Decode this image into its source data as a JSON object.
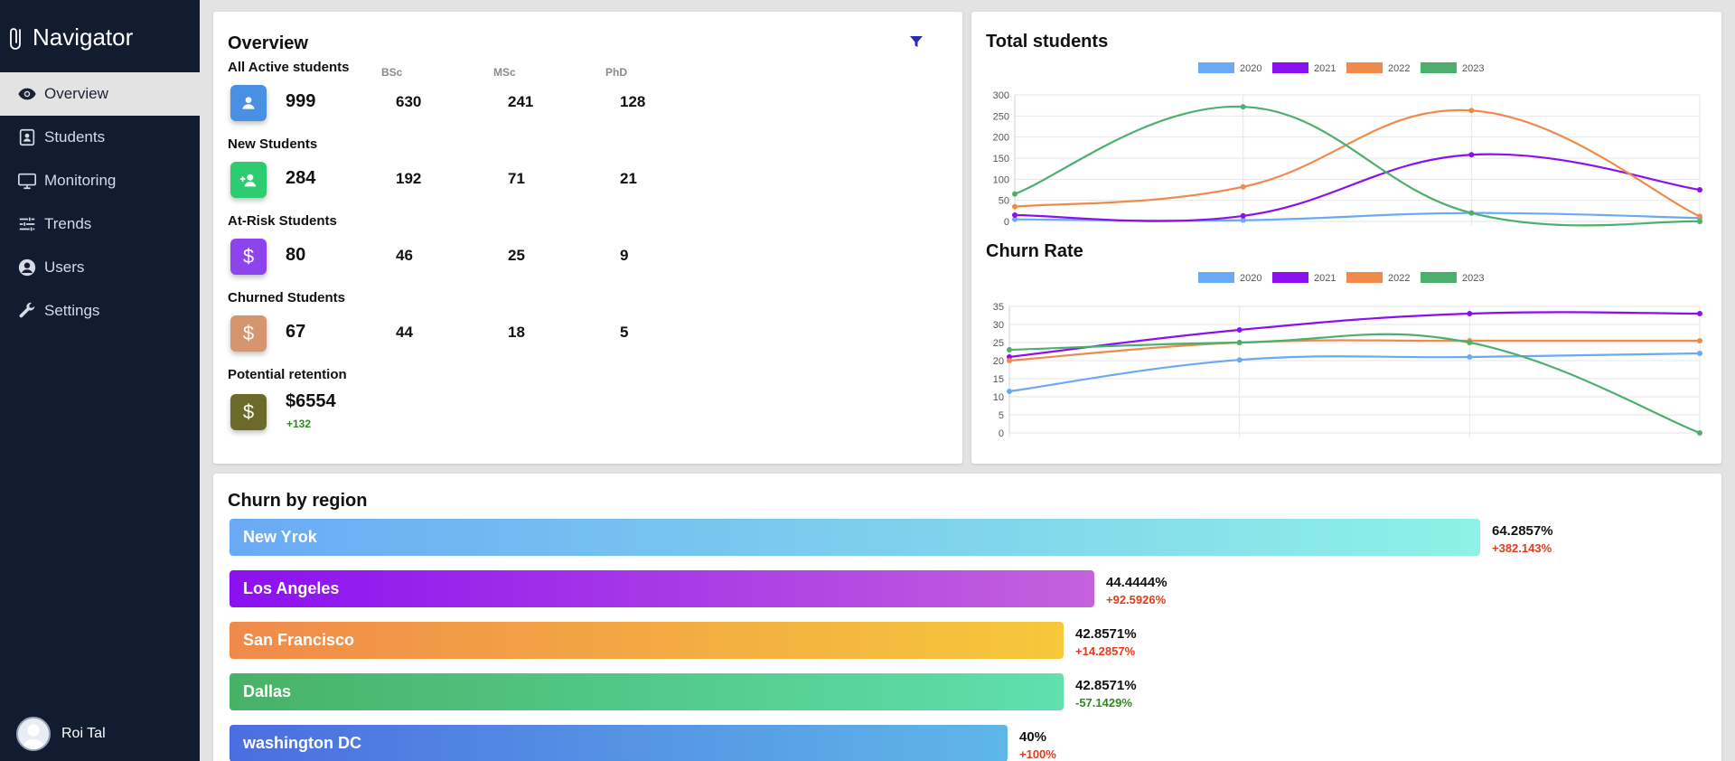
{
  "app": {
    "brand": "Navigator"
  },
  "sidebar": {
    "items": [
      {
        "label": "Overview",
        "icon": "eye-icon",
        "active": true
      },
      {
        "label": "Students",
        "icon": "id-card-icon"
      },
      {
        "label": "Monitoring",
        "icon": "monitor-icon"
      },
      {
        "label": "Trends",
        "icon": "sliders-icon"
      },
      {
        "label": "Users",
        "icon": "user-circle-icon"
      },
      {
        "label": "Settings",
        "icon": "wrench-icon"
      }
    ],
    "user": {
      "name": "Roi Tal"
    }
  },
  "overview": {
    "title": "Overview",
    "columns": [
      "BSc",
      "MSc",
      "PhD"
    ],
    "groups": [
      {
        "label": "All Active students",
        "icon": "person-icon",
        "color": "#4a90e2",
        "total": "999",
        "values": [
          "630",
          "241",
          "128"
        ]
      },
      {
        "label": "New Students",
        "icon": "person-add-icon",
        "color": "#2ecc71",
        "total": "284",
        "values": [
          "192",
          "71",
          "21"
        ]
      },
      {
        "label": "At-Risk Students",
        "icon": "dollar-icon",
        "color": "#8e44ec",
        "total": "80",
        "values": [
          "46",
          "25",
          "9"
        ]
      },
      {
        "label": "Churned Students",
        "icon": "dollar-icon",
        "color": "#d4956f",
        "total": "67",
        "values": [
          "44",
          "18",
          "5"
        ]
      },
      {
        "label": "Potential retention",
        "icon": "dollar-icon",
        "color": "#6b6a2a",
        "total": "$6554",
        "delta": "+132"
      }
    ]
  },
  "charts": {
    "total_title": "Total students",
    "churn_title": "Churn Rate"
  },
  "chart_data": [
    {
      "type": "line",
      "title": "Total students",
      "x": [
        "",
        "",
        "",
        ""
      ],
      "ylim": [
        0,
        300
      ],
      "yticks": [
        0,
        50,
        100,
        150,
        200,
        250,
        300
      ],
      "legend": "top",
      "grid": true,
      "series": [
        {
          "name": "2020",
          "color": "#6aa9f5",
          "values": [
            5,
            3,
            20,
            8
          ]
        },
        {
          "name": "2021",
          "color": "#8b10f0",
          "values": [
            15,
            13,
            158,
            75
          ]
        },
        {
          "name": "2022",
          "color": "#f08a4b",
          "values": [
            35,
            82,
            263,
            12
          ]
        },
        {
          "name": "2023",
          "color": "#4caf6e",
          "values": [
            65,
            272,
            20,
            0
          ]
        }
      ]
    },
    {
      "type": "line",
      "title": "Churn Rate",
      "x": [
        "",
        "",
        "",
        ""
      ],
      "ylim": [
        0,
        35
      ],
      "yticks": [
        0,
        5,
        10,
        15,
        20,
        25,
        30,
        35
      ],
      "legend": "top",
      "grid": true,
      "series": [
        {
          "name": "2020",
          "color": "#6aa9f5",
          "values": [
            11.5,
            20.2,
            21,
            22
          ]
        },
        {
          "name": "2021",
          "color": "#8b10f0",
          "values": [
            21,
            28.5,
            33,
            33
          ]
        },
        {
          "name": "2022",
          "color": "#f08a4b",
          "values": [
            20,
            25,
            25.5,
            25.5
          ]
        },
        {
          "name": "2023",
          "color": "#4caf6e",
          "values": [
            23,
            25,
            25,
            0
          ]
        }
      ]
    }
  ],
  "region": {
    "title": "Churn by region",
    "rows": [
      {
        "name": "New Yrok",
        "pct": "64.2857%",
        "delta": "+382.143%",
        "delta_color": "#e23b1f",
        "fraction": 0.6429,
        "from": "#6aaaf5",
        "to": "#8ef2e6"
      },
      {
        "name": "Los Angeles",
        "pct": "44.4444%",
        "delta": "+92.5926%",
        "delta_color": "#e23b1f",
        "fraction": 0.4444,
        "from": "#8b10f0",
        "to": "#c462dc"
      },
      {
        "name": "San Francisco",
        "pct": "42.8571%",
        "delta": "+14.2857%",
        "delta_color": "#e23b1f",
        "fraction": 0.4286,
        "from": "#f08a4b",
        "to": "#f6c83a"
      },
      {
        "name": "Dallas",
        "pct": "42.8571%",
        "delta": "-57.1429%",
        "delta_color": "#2e8b1e",
        "fraction": 0.4286,
        "from": "#47b266",
        "to": "#5fe0ad"
      },
      {
        "name": "washington DC",
        "pct": "40%",
        "delta": "+100%",
        "delta_color": "#e23b1f",
        "fraction": 0.4,
        "from": "#4a6ee0",
        "to": "#5fb7e8"
      }
    ]
  }
}
